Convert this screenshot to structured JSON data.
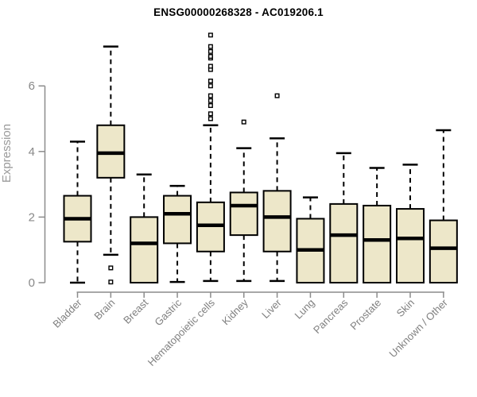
{
  "chart_data": {
    "type": "boxplot",
    "title": "ENSG00000268328 - AC019206.1",
    "ylabel": "Expression",
    "xlabel": "",
    "yticks": [
      0,
      2,
      4,
      6
    ],
    "ylim": [
      -0.3,
      7.7
    ],
    "grid": false,
    "legend": "none",
    "categories": [
      "Bladder",
      "Brain",
      "Breast",
      "Gastric",
      "Hematopoietic cells",
      "Kidney",
      "Liver",
      "Lung",
      "Pancreas",
      "Prostate",
      "Skin",
      "Unknown / Other"
    ],
    "series": [
      {
        "name": "Bladder",
        "whisker_low": 0.0,
        "q1": 1.25,
        "median": 1.95,
        "q3": 2.65,
        "whisker_high": 4.3,
        "outliers": []
      },
      {
        "name": "Brain",
        "whisker_low": 0.85,
        "q1": 3.2,
        "median": 3.95,
        "q3": 4.8,
        "whisker_high": 7.2,
        "outliers": [
          0.45,
          0.02
        ]
      },
      {
        "name": "Breast",
        "whisker_low": 0.0,
        "q1": 0.0,
        "median": 1.2,
        "q3": 2.0,
        "whisker_high": 3.3,
        "outliers": []
      },
      {
        "name": "Gastric",
        "whisker_low": 0.02,
        "q1": 1.2,
        "median": 2.1,
        "q3": 2.65,
        "whisker_high": 2.95,
        "outliers": []
      },
      {
        "name": "Hematopoietic cells",
        "whisker_low": 0.05,
        "q1": 0.95,
        "median": 1.75,
        "q3": 2.45,
        "whisker_high": 4.8,
        "outliers": [
          5.0,
          5.15,
          5.4,
          5.55,
          5.7,
          6.0,
          6.15,
          6.5,
          6.6,
          6.85,
          6.9,
          7.05,
          7.2,
          7.55
        ]
      },
      {
        "name": "Kidney",
        "whisker_low": 0.05,
        "q1": 1.45,
        "median": 2.35,
        "q3": 2.75,
        "whisker_high": 4.1,
        "outliers": [
          4.9
        ]
      },
      {
        "name": "Liver",
        "whisker_low": 0.05,
        "q1": 0.95,
        "median": 2.0,
        "q3": 2.8,
        "whisker_high": 4.4,
        "outliers": [
          5.7
        ]
      },
      {
        "name": "Lung",
        "whisker_low": 0.0,
        "q1": 0.0,
        "median": 1.0,
        "q3": 1.95,
        "whisker_high": 2.6,
        "outliers": []
      },
      {
        "name": "Pancreas",
        "whisker_low": 0.0,
        "q1": 0.0,
        "median": 1.45,
        "q3": 2.4,
        "whisker_high": 3.95,
        "outliers": []
      },
      {
        "name": "Prostate",
        "whisker_low": 0.0,
        "q1": 0.0,
        "median": 1.3,
        "q3": 2.35,
        "whisker_high": 3.5,
        "outliers": []
      },
      {
        "name": "Skin",
        "whisker_low": 0.0,
        "q1": 0.0,
        "median": 1.35,
        "q3": 2.25,
        "whisker_high": 3.6,
        "outliers": []
      },
      {
        "name": "Unknown / Other",
        "whisker_low": 0.0,
        "q1": 0.0,
        "median": 1.05,
        "q3": 1.9,
        "whisker_high": 4.65,
        "outliers": []
      }
    ]
  },
  "colors": {
    "background": "#ffffff",
    "title": "#000000",
    "box_fill": "#ede7c9",
    "box_border": "#000000",
    "median": "#000000",
    "whisker": "#000000",
    "outlier_fill": "#ffffff",
    "outlier_stroke": "#000000",
    "axis": "#8c8c8c",
    "tick_label": "#888888",
    "axis_title": "#9a9a9a",
    "category_label": "#808080"
  }
}
